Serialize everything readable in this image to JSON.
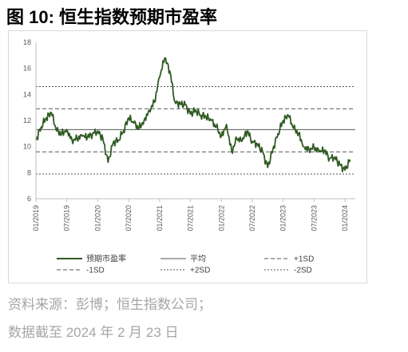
{
  "figure": {
    "title": "图 10:  恒生指数预期市盈率"
  },
  "source": {
    "line1": "资料来源：彭博；恒生指数公司；",
    "line2": "数据截至  2024 年 2 月 23 日"
  },
  "colors": {
    "main_line": "#2f5a22",
    "reference_line": "#555555",
    "axis": "#bfbfbf",
    "text": "#595959"
  },
  "chart_data": {
    "type": "line",
    "title": "",
    "xlabel": "",
    "ylabel": "",
    "ylim": [
      6,
      18
    ],
    "yticks": [
      6,
      8,
      10,
      12,
      14,
      16,
      18
    ],
    "xlim": [
      "2019-01",
      "2024-03"
    ],
    "xticks": [
      "01/2019",
      "07/2019",
      "01/2020",
      "07/2020",
      "01/2021",
      "07/2021",
      "01/2022",
      "07/2022",
      "01/2023",
      "07/2023",
      "01/2024"
    ],
    "grid": false,
    "legend_position": "bottom",
    "series": [
      {
        "name": "预期市盈率",
        "style": "solid-thick",
        "x": [
          "2019-01",
          "2019-02",
          "2019-03",
          "2019-04",
          "2019-05",
          "2019-06",
          "2019-07",
          "2019-08",
          "2019-09",
          "2019-10",
          "2019-11",
          "2019-12",
          "2020-01",
          "2020-02",
          "2020-03",
          "2020-04",
          "2020-05",
          "2020-06",
          "2020-07",
          "2020-08",
          "2020-09",
          "2020-10",
          "2020-11",
          "2020-12",
          "2021-01",
          "2021-02",
          "2021-03",
          "2021-04",
          "2021-05",
          "2021-06",
          "2021-07",
          "2021-08",
          "2021-09",
          "2021-10",
          "2021-11",
          "2021-12",
          "2022-01",
          "2022-02",
          "2022-03",
          "2022-04",
          "2022-05",
          "2022-06",
          "2022-07",
          "2022-08",
          "2022-09",
          "2022-10",
          "2022-11",
          "2022-12",
          "2023-01",
          "2023-02",
          "2023-03",
          "2023-04",
          "2023-05",
          "2023-06",
          "2023-07",
          "2023-08",
          "2023-09",
          "2023-10",
          "2023-11",
          "2023-12",
          "2024-01",
          "2024-02"
        ],
        "values": [
          10.5,
          11.5,
          12.2,
          12.6,
          11.2,
          11.0,
          11.3,
          10.5,
          10.6,
          10.8,
          10.7,
          11.0,
          11.2,
          10.6,
          8.8,
          10.3,
          10.5,
          11.2,
          12.2,
          11.8,
          11.4,
          12.0,
          12.8,
          13.4,
          15.3,
          16.8,
          15.8,
          13.4,
          13.3,
          13.2,
          12.5,
          12.8,
          12.4,
          12.3,
          12.0,
          11.5,
          10.8,
          11.7,
          9.6,
          10.6,
          10.4,
          11.2,
          10.4,
          10.2,
          9.6,
          8.4,
          9.8,
          11.0,
          12.0,
          12.4,
          11.4,
          11.0,
          10.0,
          9.8,
          9.9,
          9.6,
          9.7,
          9.1,
          9.2,
          8.6,
          8.2,
          9.0
        ]
      },
      {
        "name": "平均",
        "style": "solid-thin",
        "value": 11.3
      },
      {
        "name": "+1SD",
        "style": "dashed",
        "value": 12.9
      },
      {
        "name": "-1SD",
        "style": "dashed",
        "value": 9.6
      },
      {
        "name": "+2SD",
        "style": "dotted",
        "value": 14.6
      },
      {
        "name": "-2SD",
        "style": "dotted",
        "value": 7.9
      }
    ]
  }
}
